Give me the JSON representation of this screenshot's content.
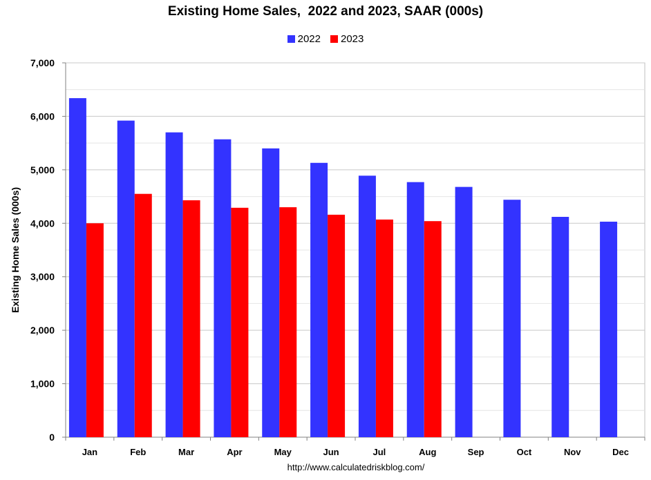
{
  "chart_data": {
    "type": "bar",
    "title": "Existing Home Sales,  2022 and 2023, SAAR (000s)",
    "xlabel": "",
    "ylabel": "Existing Home Sales (000s)",
    "ylim": [
      0,
      7000
    ],
    "yticks": [
      0,
      1000,
      2000,
      3000,
      4000,
      5000,
      6000,
      7000
    ],
    "ytick_labels": [
      "0",
      "1,000",
      "2,000",
      "3,000",
      "4,000",
      "5,000",
      "6,000",
      "7,000"
    ],
    "categories": [
      "Jan",
      "Feb",
      "Mar",
      "Apr",
      "May",
      "Jun",
      "Jul",
      "Aug",
      "Sep",
      "Oct",
      "Nov",
      "Dec"
    ],
    "series": [
      {
        "name": "2022",
        "color": "#3333FF",
        "values": [
          6340,
          5920,
          5700,
          5570,
          5400,
          5130,
          4890,
          4770,
          4680,
          4440,
          4120,
          4030
        ]
      },
      {
        "name": "2023",
        "color": "#FF0000",
        "values": [
          4000,
          4550,
          4430,
          4290,
          4300,
          4160,
          4070,
          4040,
          null,
          null,
          null,
          null
        ]
      }
    ],
    "grid": true,
    "legend": "top-center",
    "source": "http://www.calculatedriskblog.com/"
  }
}
